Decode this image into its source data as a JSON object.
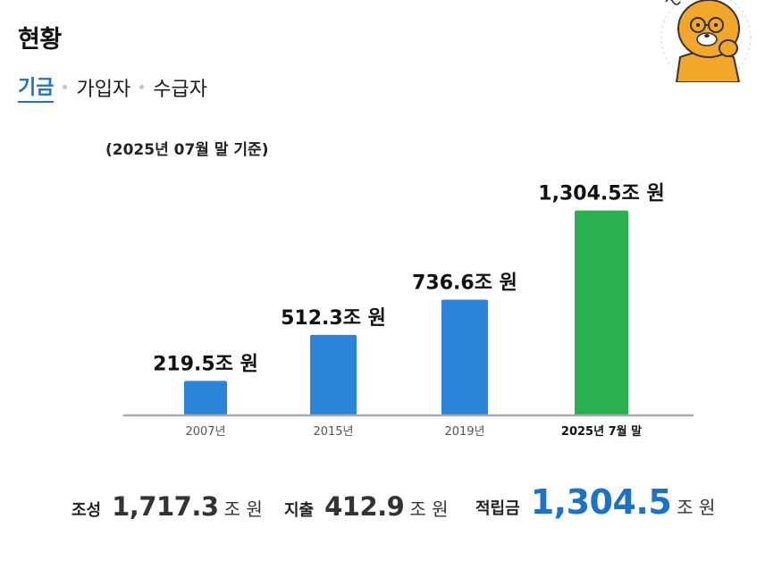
{
  "header": {
    "title": "현황"
  },
  "tabs": [
    {
      "label": "기금",
      "active": true
    },
    {
      "label": "가입자",
      "active": false
    },
    {
      "label": "수급자",
      "active": false
    }
  ],
  "mascot": {
    "icon": "lion-mascot-thinking-icon"
  },
  "chart_data": {
    "type": "bar",
    "subtitle": "(2025년 07월 말 기준)",
    "categories": [
      "2007년",
      "2015년",
      "2019년",
      "2025년 7월 말"
    ],
    "values": [
      219.5,
      512.3,
      736.6,
      1304.5
    ],
    "data_labels": [
      "219.5조 원",
      "512.3조 원",
      "736.6조 원",
      "1,304.5조 원"
    ],
    "bar_colors": [
      "#2b84d9",
      "#2b84d9",
      "#2b84d9",
      "#2bb04f"
    ],
    "highlight_category": "2025년 7월 말",
    "ylim": [
      0,
      1450
    ],
    "grid": false,
    "axis_color": "#aaaaaa"
  },
  "summary": [
    {
      "label": "조성",
      "value": "1,717.3",
      "unit": "조 원"
    },
    {
      "label": "지출",
      "value": "412.9",
      "unit": "조 원"
    },
    {
      "label": "적립금",
      "value": "1,304.5",
      "unit": "조 원"
    }
  ]
}
